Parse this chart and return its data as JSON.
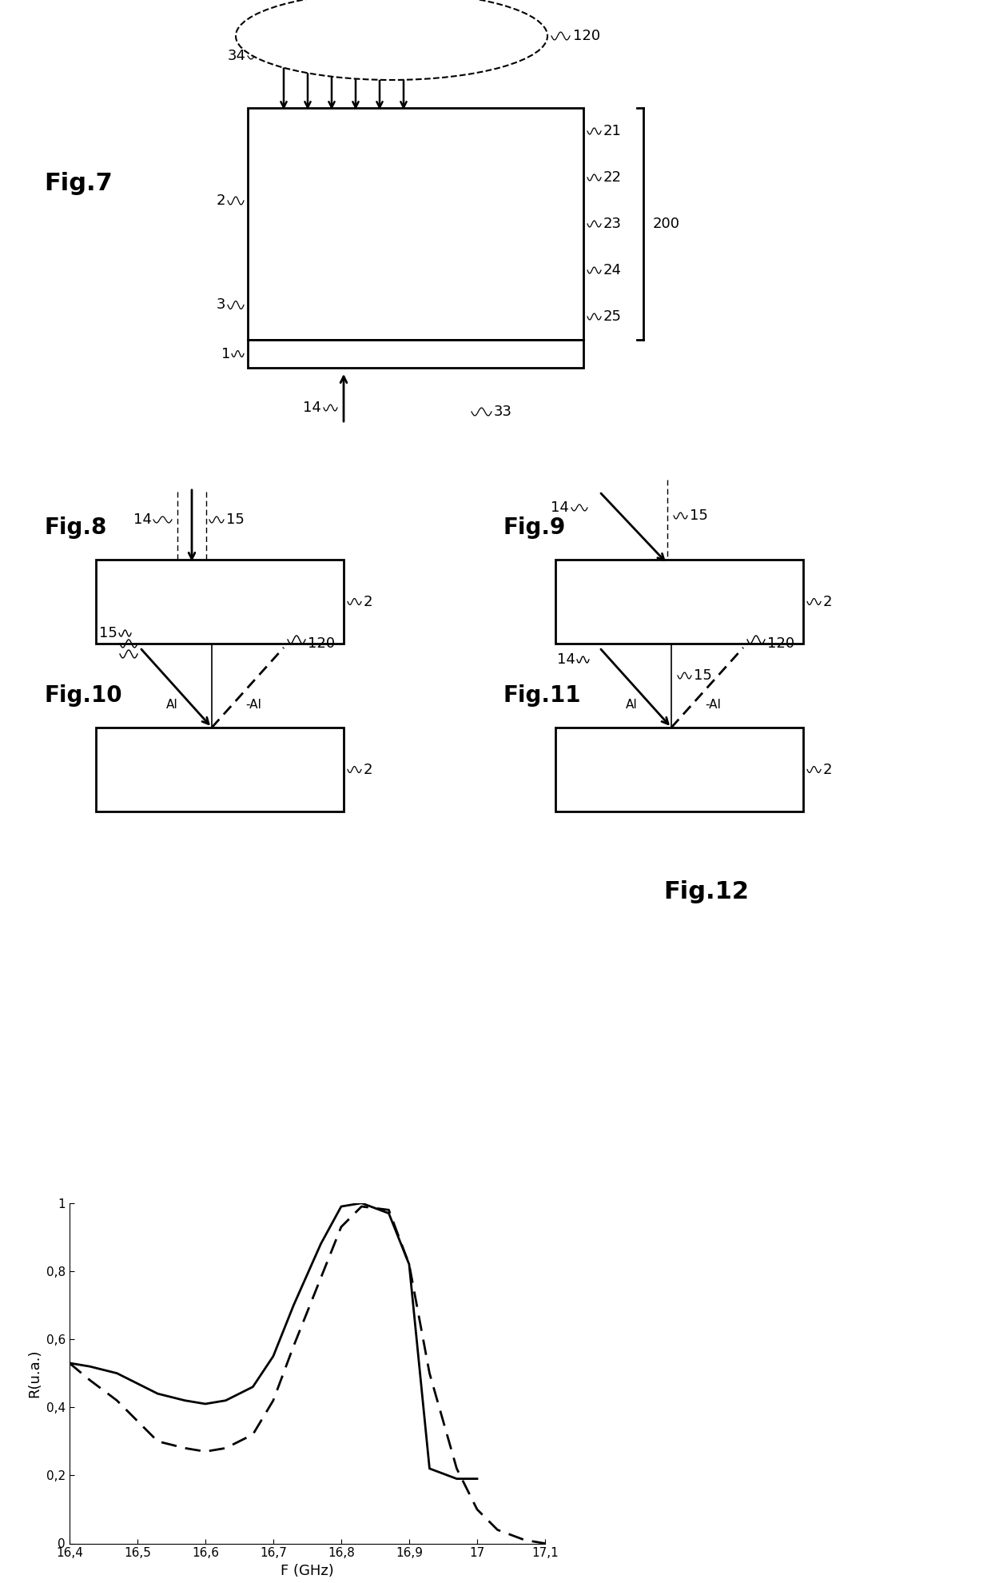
{
  "fig12": {
    "label": "Fig.12",
    "xlabel": "F (GHz)",
    "ylabel": "R(u.a.)",
    "xlim": [
      16.4,
      17.1
    ],
    "ylim": [
      0,
      1.0
    ],
    "xticks": [
      16.4,
      16.5,
      16.6,
      16.7,
      16.8,
      16.9,
      17.0,
      17.1
    ],
    "ytick_vals": [
      0,
      0.2,
      0.4,
      0.6,
      0.8,
      1
    ],
    "ytick_labels": [
      "0",
      "0,2",
      "0,4",
      "0,6",
      "0,8",
      "1"
    ],
    "xtick_labels": [
      "16,4",
      "16,5",
      "16,6",
      "16,7",
      "16,8",
      "16,9",
      "17",
      "17,1"
    ],
    "solid_x": [
      16.4,
      16.43,
      16.47,
      16.5,
      16.53,
      16.57,
      16.6,
      16.63,
      16.67,
      16.7,
      16.73,
      16.77,
      16.8,
      16.83,
      16.87,
      16.9,
      16.93,
      16.97,
      17.0
    ],
    "solid_y": [
      0.53,
      0.52,
      0.5,
      0.47,
      0.44,
      0.42,
      0.41,
      0.42,
      0.46,
      0.55,
      0.7,
      0.88,
      0.99,
      1.0,
      0.97,
      0.82,
      0.22,
      0.19,
      0.19
    ],
    "dashed_x": [
      16.4,
      16.43,
      16.47,
      16.5,
      16.53,
      16.57,
      16.6,
      16.63,
      16.67,
      16.7,
      16.73,
      16.77,
      16.8,
      16.83,
      16.87,
      16.9,
      16.93,
      16.97,
      17.0,
      17.03,
      17.07,
      17.1
    ],
    "dashed_y": [
      0.53,
      0.48,
      0.42,
      0.36,
      0.3,
      0.28,
      0.27,
      0.28,
      0.32,
      0.42,
      0.58,
      0.78,
      0.93,
      0.99,
      0.98,
      0.82,
      0.5,
      0.22,
      0.1,
      0.04,
      0.01,
      0.0
    ]
  }
}
